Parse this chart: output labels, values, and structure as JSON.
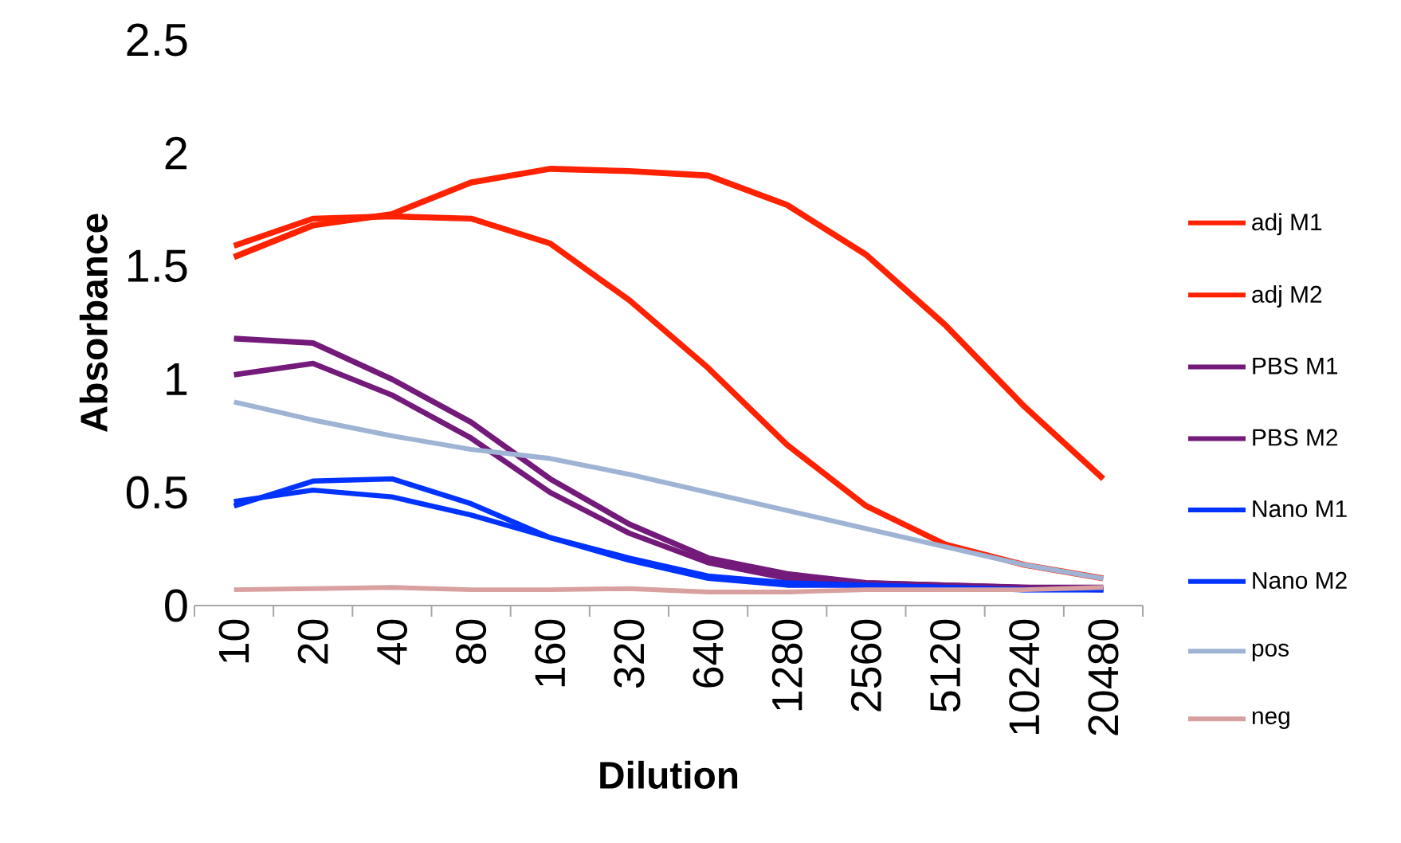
{
  "chart_data": {
    "type": "line",
    "xlabel": "Dilution",
    "ylabel": "Absorbance",
    "categories": [
      "10",
      "20",
      "40",
      "80",
      "160",
      "320",
      "640",
      "1280",
      "2560",
      "5120",
      "10240",
      "20480"
    ],
    "ylim": [
      0,
      2.5
    ],
    "yticks": [
      0,
      0.5,
      1,
      1.5,
      2,
      2.5
    ],
    "legend": "right",
    "marker": "none",
    "line_style": "solid",
    "series": [
      {
        "name": "adj M1",
        "color": "#ff2200",
        "values": [
          1.54,
          1.68,
          1.73,
          1.87,
          1.93,
          1.92,
          1.9,
          1.77,
          1.55,
          1.24,
          0.88,
          0.56
        ]
      },
      {
        "name": "adj M2",
        "color": "#ff2200",
        "values": [
          1.59,
          1.71,
          1.72,
          1.71,
          1.6,
          1.35,
          1.05,
          0.71,
          0.44,
          0.27,
          0.18,
          0.12
        ]
      },
      {
        "name": "PBS M1",
        "color": "#731a7a",
        "values": [
          1.18,
          1.16,
          1.0,
          0.81,
          0.56,
          0.36,
          0.21,
          0.14,
          0.1,
          0.09,
          0.08,
          0.08
        ]
      },
      {
        "name": "PBS M2",
        "color": "#731a7a",
        "values": [
          1.02,
          1.07,
          0.93,
          0.74,
          0.5,
          0.32,
          0.19,
          0.12,
          0.1,
          0.09,
          0.08,
          0.07
        ]
      },
      {
        "name": "Nano M1",
        "color": "#0033ff",
        "values": [
          0.44,
          0.55,
          0.56,
          0.45,
          0.3,
          0.21,
          0.13,
          0.1,
          0.09,
          0.08,
          0.07,
          0.07
        ]
      },
      {
        "name": "Nano M2",
        "color": "#0033ff",
        "values": [
          0.46,
          0.51,
          0.48,
          0.4,
          0.3,
          0.2,
          0.12,
          0.09,
          0.09,
          0.08,
          0.07,
          0.07
        ]
      },
      {
        "name": "pos",
        "color": "#9fb4d4",
        "values": [
          0.9,
          0.82,
          0.75,
          0.69,
          0.65,
          0.58,
          0.5,
          0.42,
          0.34,
          0.26,
          0.18,
          0.12
        ]
      },
      {
        "name": "neg",
        "color": "#d9a0a0",
        "values": [
          0.07,
          0.075,
          0.08,
          0.07,
          0.07,
          0.075,
          0.06,
          0.06,
          0.07,
          0.07,
          0.07,
          0.08
        ]
      }
    ]
  }
}
